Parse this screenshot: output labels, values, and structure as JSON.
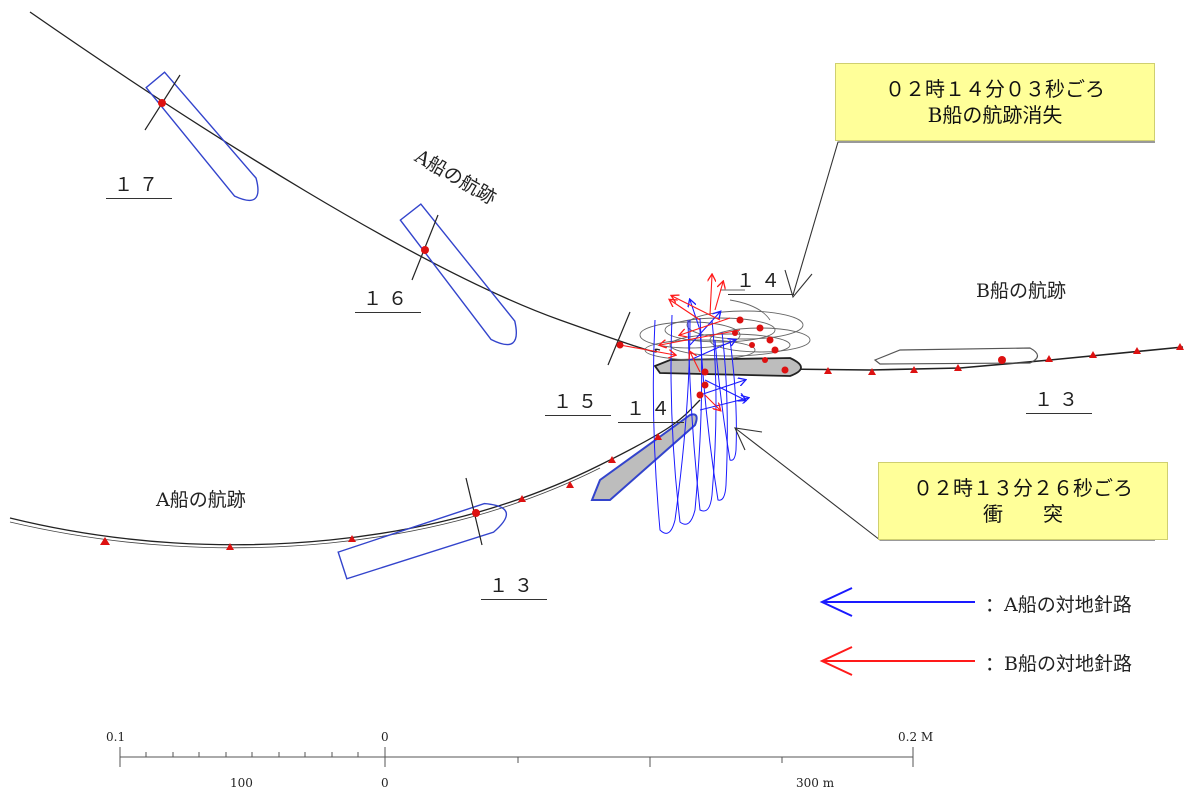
{
  "labels": {
    "a_track_upper": "A船の航跡",
    "a_track_lower": "A船の航跡",
    "b_track": "B船の航跡"
  },
  "time_marks": {
    "t17": "１７",
    "t16": "１６",
    "t15": "１５",
    "t14_upper": "１４",
    "t14_lower": "１４",
    "t13_a": "１３",
    "t13_b": "１３"
  },
  "callouts": {
    "b_lost_line1": "０２時１４分０３秒ごろ",
    "b_lost_line2": "B船の航跡消失",
    "collision_line1": "０２時１３分２６秒ごろ",
    "collision_line2": "衝　　突"
  },
  "legend": {
    "a_course": "：A船の対地針路",
    "b_course": "：B船の対地針路",
    "a_color": "#1a1aff",
    "b_color": "#ff1a1a"
  },
  "scale": {
    "nm_left": "0.1",
    "nm_mid": "0",
    "nm_right": "0.2 M",
    "m_left": "100",
    "m_mid": "0",
    "m_right": "300 m"
  },
  "colors": {
    "track": "#222222",
    "ship_a_outline": "#3344cc",
    "ship_b_outline": "#555555",
    "marker": "#dd1111",
    "callout_bg": "#ffff99"
  }
}
